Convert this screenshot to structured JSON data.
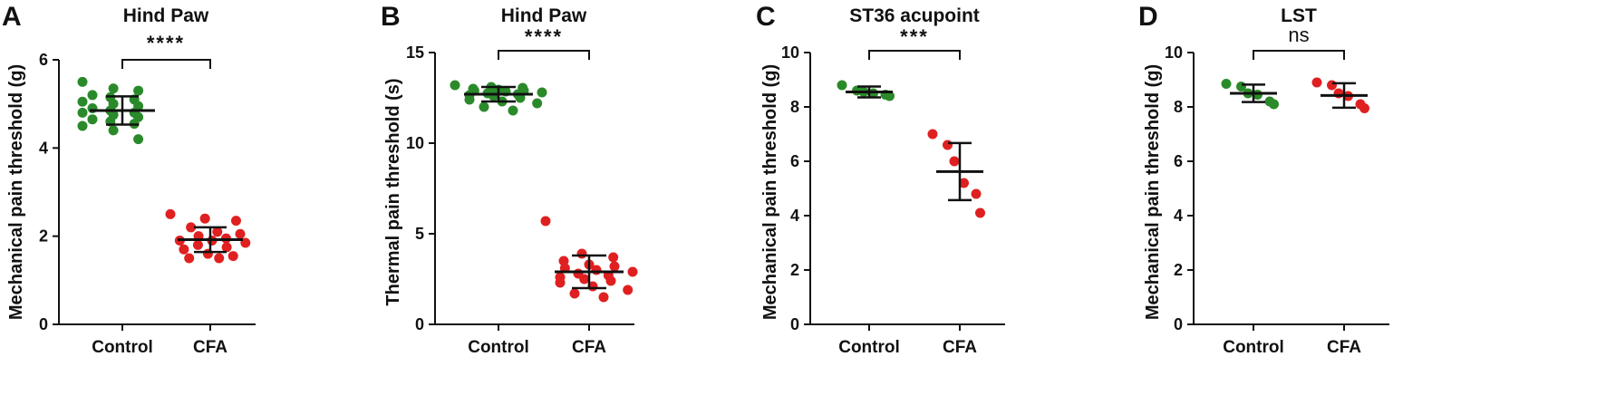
{
  "colors": {
    "control": "#2a8a2a",
    "cfa": "#e02020",
    "ink": "#111111"
  },
  "chart_data": [
    {
      "panel": "A",
      "type": "scatter",
      "title": "Hind Paw",
      "ylabel": "Mechanical pain threshold (g)",
      "xlabel": "",
      "ylim": [
        0,
        6
      ],
      "yticks": [
        "0",
        "2",
        "4",
        "6"
      ],
      "categories": [
        "Control",
        "CFA"
      ],
      "series": [
        {
          "name": "Control",
          "mean": 4.85,
          "sd": 0.32,
          "values": [
            5.5,
            5.35,
            5.3,
            5.2,
            5.15,
            5.1,
            5.05,
            5.0,
            4.95,
            4.9,
            4.85,
            4.8,
            4.8,
            4.75,
            4.7,
            4.65,
            4.6,
            4.55,
            4.5,
            4.4,
            4.2
          ]
        },
        {
          "name": "CFA",
          "mean": 1.92,
          "sd": 0.28,
          "values": [
            2.5,
            2.4,
            2.35,
            2.2,
            2.1,
            2.05,
            2.0,
            1.95,
            1.9,
            1.9,
            1.85,
            1.8,
            1.75,
            1.7,
            1.6,
            1.55,
            1.5,
            1.5
          ]
        }
      ],
      "significance": "****"
    },
    {
      "panel": "B",
      "type": "scatter",
      "title": "Hind Paw",
      "ylabel": "Thermal pain threshold (s)",
      "xlabel": "",
      "ylim": [
        0,
        15
      ],
      "yticks": [
        "0",
        "5",
        "10",
        "15"
      ],
      "categories": [
        "Control",
        "CFA"
      ],
      "series": [
        {
          "name": "Control",
          "mean": 12.7,
          "sd": 0.4,
          "values": [
            13.2,
            13.1,
            13.05,
            13.0,
            12.95,
            12.9,
            12.9,
            12.85,
            12.8,
            12.75,
            12.7,
            12.65,
            12.6,
            12.5,
            12.4,
            12.3,
            12.2,
            12.0,
            11.8
          ]
        },
        {
          "name": "CFA",
          "mean": 2.9,
          "sd": 0.9,
          "values": [
            5.7,
            3.9,
            3.7,
            3.5,
            3.3,
            3.2,
            3.1,
            3.0,
            2.9,
            2.8,
            2.7,
            2.6,
            2.5,
            2.4,
            2.3,
            2.1,
            1.9,
            1.7,
            1.5
          ]
        }
      ],
      "significance": "****"
    },
    {
      "panel": "C",
      "type": "scatter",
      "title": "ST36 acupoint",
      "ylabel": "Mechanical pain threshold (g)",
      "xlabel": "",
      "ylim": [
        0,
        10
      ],
      "yticks": [
        "0",
        "2",
        "4",
        "6",
        "8",
        "10"
      ],
      "categories": [
        "Control",
        "CFA"
      ],
      "series": [
        {
          "name": "Control",
          "mean": 8.55,
          "sd": 0.2,
          "values": [
            8.8,
            8.6,
            8.55,
            8.5,
            8.45,
            8.4
          ]
        },
        {
          "name": "CFA",
          "mean": 5.62,
          "sd": 1.05,
          "values": [
            7.0,
            6.6,
            6.0,
            5.2,
            4.8,
            4.1
          ]
        }
      ],
      "significance": "***"
    },
    {
      "panel": "D",
      "type": "scatter",
      "title": "LST",
      "ylabel": "Mechanical pain threshold (g)",
      "xlabel": "",
      "ylim": [
        0,
        10
      ],
      "yticks": [
        "0",
        "2",
        "4",
        "6",
        "8",
        "10"
      ],
      "categories": [
        "Control",
        "CFA"
      ],
      "series": [
        {
          "name": "Control",
          "mean": 8.5,
          "sd": 0.32,
          "values": [
            8.85,
            8.75,
            8.5,
            8.45,
            8.2,
            8.1
          ]
        },
        {
          "name": "CFA",
          "mean": 8.42,
          "sd": 0.45,
          "values": [
            8.9,
            8.8,
            8.5,
            8.4,
            8.1,
            7.95
          ]
        }
      ],
      "significance": "ns"
    }
  ]
}
